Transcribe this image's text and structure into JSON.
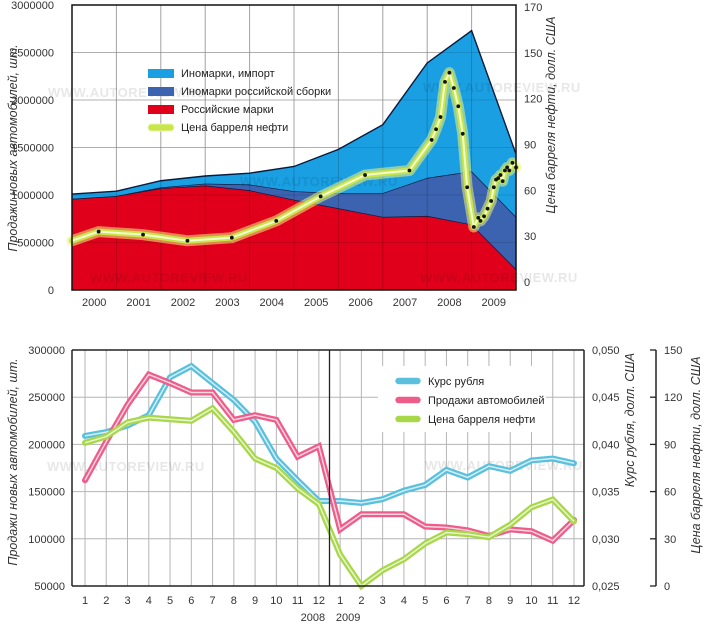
{
  "watermark": "WWW.AUTOREVIEW.RU",
  "chart_data": [
    {
      "type": "area",
      "title": "",
      "xlabel": "",
      "ylabel": "Продажи новых автомобилей, шт.",
      "y2label": "Цена барреля нефти, долл. США",
      "ylim": [
        0,
        3000000
      ],
      "yticks": [
        "0",
        "500000",
        "1000000",
        "1500000",
        "2000000",
        "2500000",
        "3000000"
      ],
      "y2ticks": [
        "0",
        "30",
        "60",
        "90",
        "120",
        "150",
        "170"
      ],
      "y2lim": [
        0,
        180
      ],
      "grid": true,
      "legend_position": "top-left",
      "categories": [
        "2000",
        "2001",
        "2002",
        "2003",
        "2004",
        "2005",
        "2006",
        "2007",
        "2008",
        "2009"
      ],
      "area_x": [
        1999.5,
        2000.5,
        2001.5,
        2002.5,
        2003.5,
        2004.5,
        2005.5,
        2006.5,
        2007.5,
        2008.5,
        2009.5
      ],
      "series": [
        {
          "name": "Российские марки",
          "color": "#e0001b",
          "values": [
            960000,
            990000,
            1070000,
            1100000,
            1050000,
            950000,
            860000,
            770000,
            780000,
            690000,
            220000
          ]
        },
        {
          "name": "Иномарки российской сборки",
          "color": "#3c63b0",
          "values": [
            0,
            0,
            10000,
            20000,
            60000,
            90000,
            160000,
            250000,
            400000,
            560000,
            550000
          ]
        },
        {
          "name": "Иномарки, импорт",
          "color": "#1a9fe3",
          "values": [
            50000,
            50000,
            70000,
            80000,
            120000,
            260000,
            460000,
            720000,
            1210000,
            1480000,
            660000
          ]
        }
      ],
      "oil": {
        "name": "Цена барреля нефти",
        "color": "#c8e64a",
        "x": [
          1999.5,
          2000.1,
          2001.1,
          2002.1,
          2003.1,
          2004.1,
          2005.1,
          2006.1,
          2007.1,
          2007.6,
          2007.7,
          2007.8,
          2007.9,
          2008.0,
          2008.1,
          2008.2,
          2008.3,
          2008.4,
          2008.55,
          2008.65,
          2008.7,
          2008.78,
          2008.86,
          2008.94,
          2009.0,
          2009.05,
          2009.1,
          2009.15,
          2009.2,
          2009.25,
          2009.3,
          2009.35,
          2009.42,
          2009.5
        ],
        "values": [
          27,
          33,
          31,
          27,
          29,
          40,
          56,
          70,
          73,
          93,
          100,
          108,
          131,
          137,
          127,
          115,
          97,
          62,
          36,
          42,
          40,
          43,
          48,
          53,
          62,
          67,
          68,
          70,
          66,
          73,
          75,
          73,
          78,
          75
        ]
      },
      "legend": [
        "Иномарки, импорт",
        "Иномарки российской сборки",
        "Российские марки",
        "Цена барреля нефти"
      ]
    },
    {
      "type": "line",
      "title": "",
      "xlabel": "",
      "ylabel": "Продажи новых автомобилей, шт.",
      "y2label": "Курс рубля, долл. США",
      "y3label": "Цена барреля нефти, долл. США",
      "ylim": [
        50000,
        300000
      ],
      "yticks": [
        "50000",
        "100000",
        "150000",
        "200000",
        "250000",
        "300000"
      ],
      "y2lim": [
        0.025,
        0.05
      ],
      "y2ticks": [
        "0,025",
        "0,030",
        "0,035",
        "0,040",
        "0,045",
        "0,050"
      ],
      "y3lim": [
        0,
        150
      ],
      "y3ticks": [
        "0",
        "30",
        "60",
        "90",
        "120",
        "150"
      ],
      "grid": true,
      "legend_position": "top-right",
      "categories": [
        "1",
        "2",
        "3",
        "4",
        "5",
        "6",
        "7",
        "8",
        "9",
        "10",
        "11",
        "12",
        "1",
        "2",
        "3",
        "4",
        "5",
        "6",
        "7",
        "8",
        "9",
        "10",
        "11",
        "12"
      ],
      "year_labels": [
        "2008",
        "2009"
      ],
      "series": [
        {
          "name": "Курс рубля",
          "axis": "y2",
          "color": "#5bc0de",
          "values": [
            0.0409,
            0.0413,
            0.042,
            0.0431,
            0.0471,
            0.0483,
            0.0465,
            0.0447,
            0.0424,
            0.0385,
            0.0362,
            0.034,
            0.034,
            0.0338,
            0.0342,
            0.0351,
            0.0357,
            0.0373,
            0.0365,
            0.0377,
            0.0372,
            0.0383,
            0.0385,
            0.038
          ]
        },
        {
          "name": "Продажи автомобилей",
          "axis": "y",
          "color": "#ee5c8a",
          "values": [
            162000,
            203000,
            242000,
            274000,
            265000,
            255000,
            255000,
            226000,
            231000,
            226000,
            187000,
            198000,
            110000,
            126000,
            126000,
            126000,
            113000,
            112000,
            109000,
            103000,
            110000,
            108000,
            98000,
            120000
          ]
        },
        {
          "name": "Цена барреля нефти",
          "axis": "y3",
          "color": "#a8d84a",
          "values": [
            91,
            95,
            104,
            107,
            106,
            105,
            113,
            98,
            81,
            75,
            62,
            52,
            20,
            0,
            10,
            17,
            27,
            34,
            33,
            31,
            39,
            50,
            55,
            41
          ]
        }
      ],
      "legend": [
        "Курс рубля",
        "Продажи автомобилей",
        "Цена барреля нефти"
      ]
    }
  ]
}
